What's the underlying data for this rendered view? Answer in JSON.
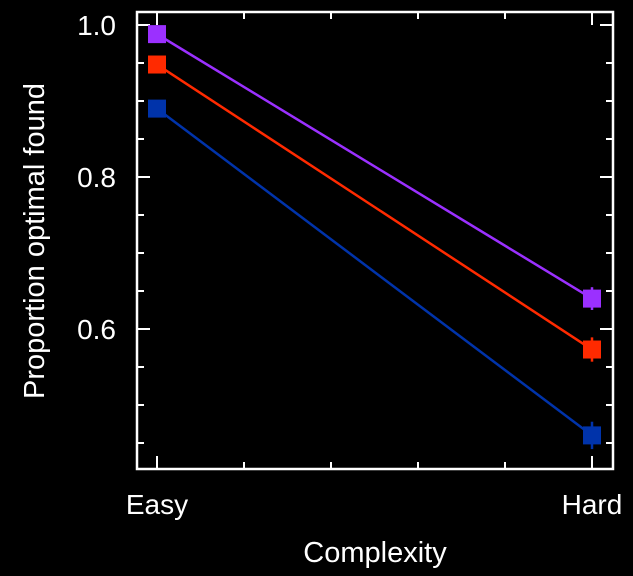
{
  "chart_data": {
    "type": "line",
    "xlabel": "Complexity",
    "ylabel": "Proportion optimal found",
    "categories": [
      "Easy",
      "Hard"
    ],
    "ylim": [
      0.44,
      1.02
    ],
    "yticks": [
      "0.6",
      "0.8",
      "1.0"
    ],
    "grid": false,
    "series": [
      {
        "color": "#9b30ff",
        "values": [
          0.988,
          0.64
        ],
        "errors": [
          0.006,
          0.015
        ]
      },
      {
        "color": "#ff2a00",
        "values": [
          0.948,
          0.573
        ],
        "errors": [
          0.006,
          0.016
        ]
      },
      {
        "color": "#0033aa",
        "values": [
          0.89,
          0.46
        ],
        "errors": [
          0.006,
          0.018
        ]
      }
    ],
    "colors": {
      "background": "#000000",
      "axes": "#ffffff"
    }
  }
}
